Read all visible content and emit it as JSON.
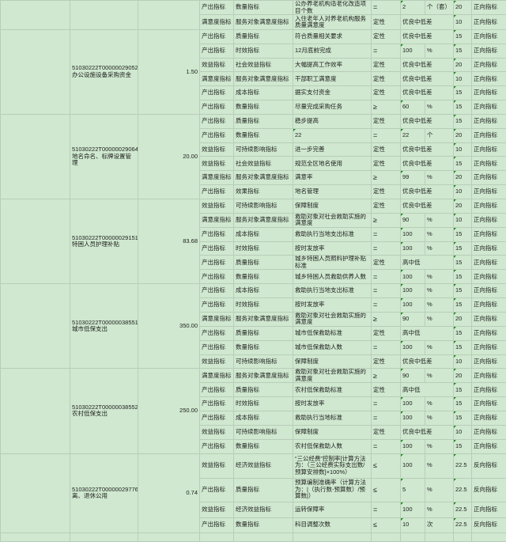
{
  "groups": [
    {
      "code": "",
      "name": "",
      "amount": "",
      "rows": [
        [
          "产出指标",
          "数量指标",
          "公办养老机构适老化改造项目个数",
          "=",
          "2",
          "个（套）",
          "20",
          "正向指标"
        ],
        [
          "满意度指标",
          "服务对象满意度指标",
          "入住老年人对养老机构服务质量满意度",
          "定性",
          "优良中低差",
          "",
          "10",
          "正向指标"
        ]
      ]
    },
    {
      "code": "51030222T000000290527-",
      "name": "办公设施设备采购资金",
      "amount": "1.50",
      "rows": [
        [
          "产出指标",
          "质量指标",
          "符合质量相关要求",
          "定性",
          "优良中低差",
          "",
          "15",
          "正向指标"
        ],
        [
          "产出指标",
          "时效指标",
          "12月底前完成",
          "=",
          "100",
          "%",
          "15",
          "正向指标"
        ],
        [
          "效益指标",
          "社会效益指标",
          "大幅提高工作效率",
          "定性",
          "优良中低差",
          "",
          "20",
          "正向指标"
        ],
        [
          "满意度指标",
          "服务对象满意度指标",
          "干部职工满意度",
          "定性",
          "优良中低差",
          "",
          "10",
          "正向指标"
        ],
        [
          "产出指标",
          "成本指标",
          "据实支付资金",
          "定性",
          "优良中低差",
          "",
          "15",
          "正向指标"
        ],
        [
          "产出指标",
          "数量指标",
          "尽量完成采购任务",
          "≥",
          "60",
          "%",
          "15",
          "正向指标"
        ]
      ]
    },
    {
      "code": "51030222T000000290649-",
      "name": "地名命名、标牌设置管理",
      "amount": "20.00",
      "rows": [
        [
          "产出指标",
          "质量指标",
          "稳步提高",
          "定性",
          "优良中低差",
          "",
          "15",
          "正向指标"
        ],
        [
          "产出指标",
          "数量指标",
          "22",
          "=",
          "22",
          "个",
          "20",
          "正向指标"
        ],
        [
          "效益指标",
          "可持续影响指标",
          "进一步完善",
          "定性",
          "优良中低差",
          "",
          "10",
          "正向指标"
        ],
        [
          "效益指标",
          "社会效益指标",
          "规范全区地名使用",
          "定性",
          "优良中低差",
          "",
          "15",
          "正向指标"
        ],
        [
          "满意度指标",
          "服务对象满意度指标",
          "满意率",
          "≥",
          "99",
          "%",
          "20",
          "正向指标"
        ],
        [
          "产出指标",
          "效果指标",
          "地名管理",
          "定性",
          "优良中低差",
          "",
          "10",
          "正向指标"
        ]
      ]
    },
    {
      "code": "51030222T000000291517-",
      "name": "特困人员护理补贴",
      "amount": "83.68",
      "rows": [
        [
          "效益指标",
          "可持续影响指标",
          "保障制度",
          "定性",
          "优良中低差",
          "",
          "20",
          "正向指标"
        ],
        [
          "满意度指标",
          "服务对象满意度指标",
          "救助对象对社会救助实施的满意度",
          "≥",
          "90",
          "%",
          "10",
          "正向指标"
        ],
        [
          "产出指标",
          "成本指标",
          "救助执行当地支出标准",
          "=",
          "100",
          "%",
          "15",
          "正向指标"
        ],
        [
          "产出指标",
          "时效指标",
          "按时发放率",
          "=",
          "100",
          "%",
          "15",
          "正向指标"
        ],
        [
          "产出指标",
          "质量指标",
          "城乡特困人员照料护理补贴标准",
          "定性",
          "高中低",
          "",
          "15",
          "正向指标"
        ],
        [
          "产出指标",
          "数量指标",
          "城乡特困人员救助供养人数",
          "=",
          "100",
          "%",
          "15",
          "正向指标"
        ]
      ]
    },
    {
      "code": "51030222T000000385519-",
      "name": "城市低保支出",
      "amount": "350.00",
      "rows": [
        [
          "产出指标",
          "成本指标",
          "救助执行当地支出标准",
          "=",
          "100",
          "%",
          "15",
          "正向指标"
        ],
        [
          "产出指标",
          "时效指标",
          "按时发放率",
          "=",
          "100",
          "%",
          "15",
          "正向指标"
        ],
        [
          "满意度指标",
          "服务对象满意度指标",
          "救助对象对社会救助实施的满意度",
          "≥",
          "90",
          "%",
          "20",
          "正向指标"
        ],
        [
          "产出指标",
          "质量指标",
          "城市低保救助标准",
          "定性",
          "高中低",
          "",
          "15",
          "正向指标"
        ],
        [
          "产出指标",
          "数量指标",
          "城市低保救助人数",
          "=",
          "100",
          "%",
          "15",
          "正向指标"
        ],
        [
          "效益指标",
          "可持续影响指标",
          "保障制度",
          "定性",
          "优良中低差",
          "",
          "10",
          "正向指标"
        ]
      ]
    },
    {
      "code": "51030222T000000385521-",
      "name": "农村低保支出",
      "amount": "250.00",
      "rows": [
        [
          "满意度指标",
          "服务对象满意度指标",
          "救助对象对社会救助实施的满意度",
          "≥",
          "90",
          "%",
          "20",
          "正向指标"
        ],
        [
          "产出指标",
          "质量指标",
          "农村低保救助标准",
          "定性",
          "高中低",
          "",
          "15",
          "正向指标"
        ],
        [
          "产出指标",
          "时效指标",
          "按时发放率",
          "=",
          "100",
          "%",
          "15",
          "正向指标"
        ],
        [
          "产出指标",
          "成本指标",
          "救助执行当地标准",
          "=",
          "100",
          "%",
          "15",
          "正向指标"
        ],
        [
          "效益指标",
          "可持续影响指标",
          "保障制度",
          "定性",
          "优良中低差",
          "",
          "10",
          "正向指标"
        ],
        [
          "产出指标",
          "数量指标",
          "农村低保救助人数",
          "=",
          "100",
          "%",
          "15",
          "正向指标"
        ]
      ]
    },
    {
      "code": "51030222T000000297769-",
      "name": "离、退休公用",
      "amount": "0.74",
      "rows": [
        [
          "效益指标",
          "经济效益指标",
          "“三公经费”控制率[计算方法为：（三公经费实际支出数/预算安排数]×100%）",
          "≤",
          "100",
          "%",
          "22.5",
          "反向指标"
        ],
        [
          "产出指标",
          "质量指标",
          "预算编制准确率（计算方法为：|（执行数-预算数）/预算数|）",
          "≤",
          "5",
          "%",
          "22.5",
          "反向指标"
        ],
        [
          "效益指标",
          "经济效益指标",
          "运转保障率",
          "=",
          "100",
          "%",
          "22.5",
          "正向指标"
        ],
        [
          "产出指标",
          "数量指标",
          "科目调整次数",
          "≤",
          "10",
          "次",
          "22.5",
          "反向指标"
        ]
      ]
    }
  ],
  "colors": {
    "background": "#cfe8cf",
    "grid": "#b9cdb9",
    "marker": "#1a8a1a"
  }
}
